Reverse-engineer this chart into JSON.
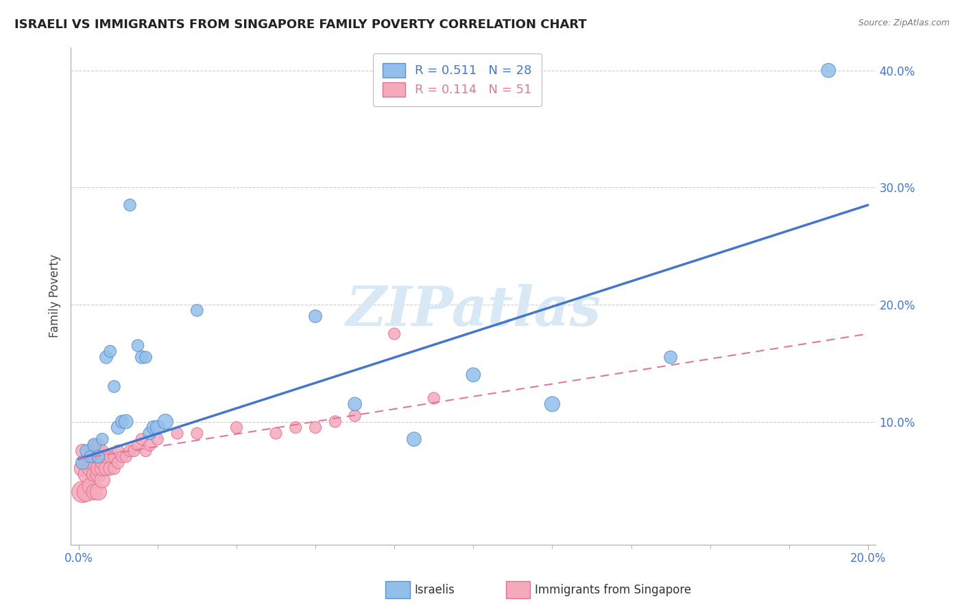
{
  "title": "ISRAELI VS IMMIGRANTS FROM SINGAPORE FAMILY POVERTY CORRELATION CHART",
  "source": "Source: ZipAtlas.com",
  "xlabel_label": "Israelis",
  "xlabel_label2": "Immigrants from Singapore",
  "ylabel": "Family Poverty",
  "xlim": [
    -0.002,
    0.202
  ],
  "ylim": [
    -0.005,
    0.42
  ],
  "xticks": [
    0.0,
    0.2
  ],
  "yticks": [
    0.1,
    0.2,
    0.3,
    0.4
  ],
  "xticklabels": [
    "0.0%",
    "20.0%"
  ],
  "yticklabels": [
    "10.0%",
    "20.0%",
    "30.0%",
    "40.0%"
  ],
  "israelis_R": 0.511,
  "israelis_N": 28,
  "singapore_R": 0.114,
  "singapore_N": 51,
  "blue_color": "#92BFEA",
  "pink_color": "#F5AABC",
  "blue_edge_color": "#5B8FCC",
  "pink_edge_color": "#E07090",
  "blue_line_color": "#4477CC",
  "pink_line_color": "#E07898",
  "watermark_color": "#D8E8F5",
  "watermark": "ZIPatlas",
  "grid_color": "#CCCCCC",
  "tick_color": "#4477CC",
  "israelis_x": [
    0.001,
    0.002,
    0.003,
    0.004,
    0.005,
    0.006,
    0.007,
    0.008,
    0.009,
    0.01,
    0.011,
    0.012,
    0.013,
    0.015,
    0.016,
    0.017,
    0.018,
    0.019,
    0.02,
    0.022,
    0.03,
    0.06,
    0.07,
    0.085,
    0.1,
    0.12,
    0.15,
    0.19
  ],
  "israelis_y": [
    0.065,
    0.075,
    0.07,
    0.08,
    0.07,
    0.085,
    0.155,
    0.16,
    0.13,
    0.095,
    0.1,
    0.1,
    0.285,
    0.165,
    0.155,
    0.155,
    0.09,
    0.095,
    0.095,
    0.1,
    0.195,
    0.19,
    0.115,
    0.085,
    0.14,
    0.115,
    0.155,
    0.4
  ],
  "israelis_size": [
    200,
    180,
    160,
    200,
    180,
    160,
    180,
    160,
    160,
    200,
    180,
    220,
    160,
    160,
    180,
    160,
    180,
    200,
    220,
    250,
    160,
    180,
    200,
    220,
    220,
    250,
    180,
    220
  ],
  "singapore_x": [
    0.001,
    0.001,
    0.001,
    0.002,
    0.002,
    0.002,
    0.003,
    0.003,
    0.003,
    0.003,
    0.004,
    0.004,
    0.004,
    0.004,
    0.004,
    0.005,
    0.005,
    0.005,
    0.005,
    0.005,
    0.006,
    0.006,
    0.006,
    0.006,
    0.007,
    0.007,
    0.008,
    0.008,
    0.009,
    0.009,
    0.01,
    0.01,
    0.011,
    0.012,
    0.013,
    0.014,
    0.015,
    0.016,
    0.017,
    0.018,
    0.02,
    0.025,
    0.03,
    0.04,
    0.05,
    0.055,
    0.06,
    0.065,
    0.07,
    0.08,
    0.09
  ],
  "singapore_y": [
    0.04,
    0.06,
    0.075,
    0.04,
    0.055,
    0.065,
    0.045,
    0.06,
    0.065,
    0.075,
    0.04,
    0.055,
    0.065,
    0.07,
    0.08,
    0.04,
    0.055,
    0.06,
    0.07,
    0.08,
    0.05,
    0.06,
    0.065,
    0.075,
    0.06,
    0.07,
    0.06,
    0.07,
    0.06,
    0.07,
    0.065,
    0.075,
    0.07,
    0.07,
    0.075,
    0.075,
    0.08,
    0.085,
    0.075,
    0.08,
    0.085,
    0.09,
    0.09,
    0.095,
    0.09,
    0.095,
    0.095,
    0.1,
    0.105,
    0.175,
    0.12
  ],
  "singapore_size": [
    500,
    300,
    200,
    400,
    300,
    200,
    300,
    280,
    220,
    180,
    280,
    260,
    220,
    180,
    150,
    300,
    280,
    250,
    200,
    180,
    260,
    240,
    200,
    160,
    230,
    200,
    200,
    160,
    160,
    160,
    160,
    150,
    150,
    150,
    150,
    150,
    150,
    150,
    150,
    150,
    150,
    150,
    150,
    150,
    150,
    150,
    150,
    150,
    150,
    150,
    150
  ],
  "blue_line_x": [
    0.0,
    0.2
  ],
  "blue_line_y": [
    0.068,
    0.285
  ],
  "pink_line_x": [
    0.0,
    0.2
  ],
  "pink_line_y": [
    0.068,
    0.175
  ]
}
